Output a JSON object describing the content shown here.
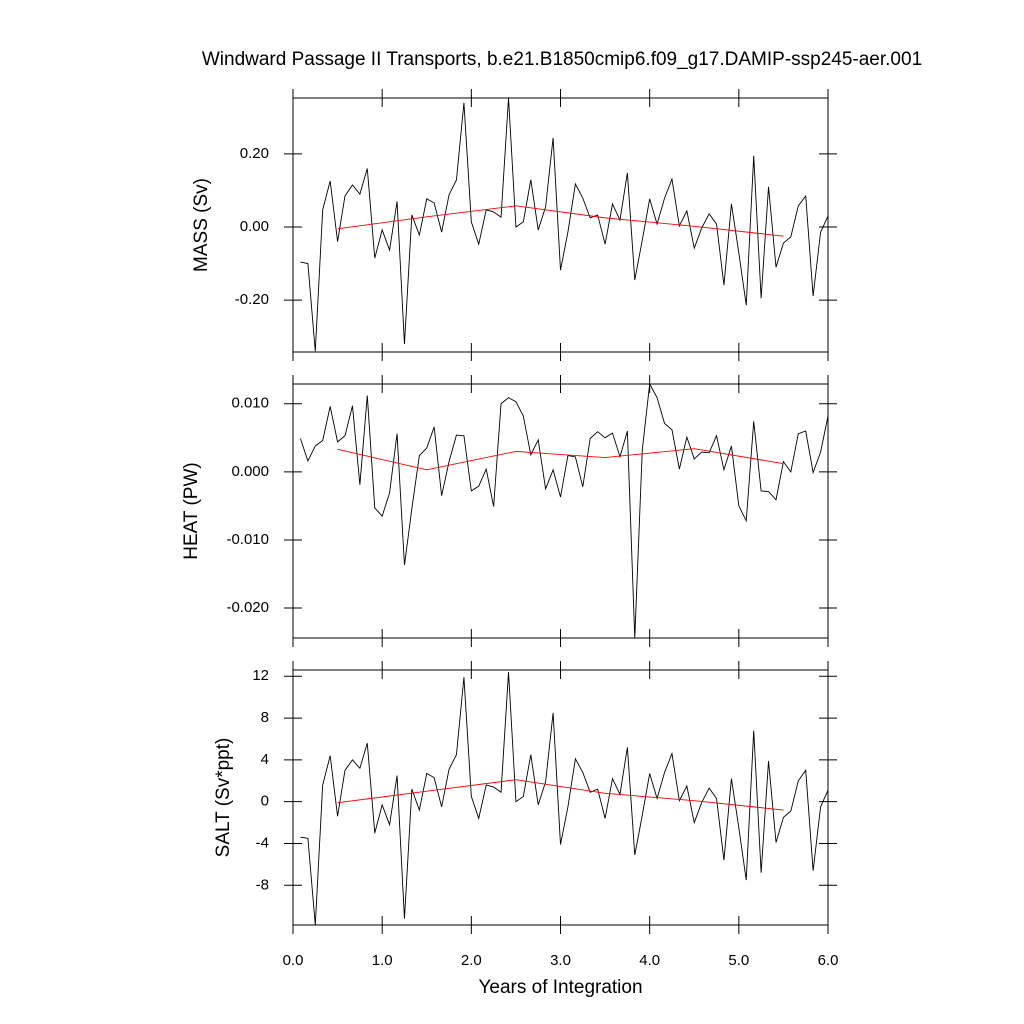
{
  "title": "Windward Passage II Transports, b.e21.B1850cmip6.f09_g17.DAMIP-ssp245-aer.001",
  "chart_data": [
    {
      "type": "line",
      "ylabel": "MASS (Sv)",
      "x": [
        0.083,
        0.167,
        0.25,
        0.333,
        0.417,
        0.5,
        0.583,
        0.667,
        0.75,
        0.833,
        0.917,
        1.0,
        1.083,
        1.167,
        1.25,
        1.333,
        1.417,
        1.5,
        1.583,
        1.667,
        1.75,
        1.833,
        1.917,
        2.0,
        2.083,
        2.167,
        2.25,
        2.333,
        2.417,
        2.5,
        2.583,
        2.667,
        2.75,
        2.833,
        2.917,
        3.0,
        3.083,
        3.167,
        3.25,
        3.333,
        3.417,
        3.5,
        3.583,
        3.667,
        3.75,
        3.833,
        3.917,
        4.0,
        4.083,
        4.167,
        4.25,
        4.333,
        4.417,
        4.5,
        4.583,
        4.667,
        4.75,
        4.833,
        4.917,
        5.0,
        5.083,
        5.167,
        5.25,
        5.333,
        5.417,
        5.5,
        5.583,
        5.667,
        5.75,
        5.833,
        5.917,
        6.0
      ],
      "series": [
        {
          "color": "#000000",
          "values": [
            -0.096,
            -0.1,
            -0.34,
            0.047,
            0.126,
            -0.04,
            0.085,
            0.115,
            0.09,
            0.16,
            -0.085,
            -0.008,
            -0.063,
            0.07,
            -0.32,
            0.033,
            -0.022,
            0.077,
            0.066,
            -0.014,
            0.088,
            0.129,
            0.34,
            0.014,
            -0.047,
            0.047,
            0.041,
            0.027,
            0.353,
            0.0,
            0.014,
            0.129,
            -0.008,
            0.055,
            0.244,
            -0.118,
            -0.014,
            0.118,
            0.079,
            0.025,
            0.033,
            -0.047,
            0.063,
            0.019,
            0.148,
            -0.145,
            -0.036,
            0.077,
            0.008,
            0.079,
            0.131,
            0.003,
            0.044,
            -0.058,
            -0.003,
            0.036,
            0.008,
            -0.159,
            0.063,
            -0.071,
            -0.214,
            0.195,
            -0.195,
            0.11,
            -0.11,
            -0.044,
            -0.027,
            0.058,
            0.085,
            -0.189,
            -0.014,
            0.03
          ]
        },
        {
          "color": "#ff0000",
          "x": [
            0.5,
            1.5,
            2.5,
            3.5,
            4.5,
            5.5
          ],
          "values": [
            -0.005,
            0.028,
            0.058,
            0.025,
            0.002,
            -0.025
          ]
        }
      ],
      "xlim": [
        0,
        6
      ],
      "xticks": [
        {
          "value": 0,
          "label": "0.0"
        },
        {
          "value": 1,
          "label": "1.0"
        },
        {
          "value": 2,
          "label": "2.0"
        },
        {
          "value": 3,
          "label": "3.0"
        },
        {
          "value": 4,
          "label": "4.0"
        },
        {
          "value": 5,
          "label": "5.0"
        },
        {
          "value": 6,
          "label": "6.0"
        }
      ],
      "ylim": [
        -0.342,
        0.353
      ],
      "yticks": [
        {
          "value": -0.2,
          "label": "-0.20"
        },
        {
          "value": 0,
          "label": "0.00"
        },
        {
          "value": 0.2,
          "label": "0.20"
        }
      ]
    },
    {
      "type": "line",
      "ylabel": "HEAT (PW)",
      "x": [
        0.083,
        0.167,
        0.25,
        0.333,
        0.417,
        0.5,
        0.583,
        0.667,
        0.75,
        0.833,
        0.917,
        1.0,
        1.083,
        1.167,
        1.25,
        1.333,
        1.417,
        1.5,
        1.583,
        1.667,
        1.75,
        1.833,
        1.917,
        2.0,
        2.083,
        2.167,
        2.25,
        2.333,
        2.417,
        2.5,
        2.583,
        2.667,
        2.75,
        2.833,
        2.917,
        3.0,
        3.083,
        3.167,
        3.25,
        3.333,
        3.417,
        3.5,
        3.583,
        3.667,
        3.75,
        3.833,
        3.917,
        4.0,
        4.083,
        4.167,
        4.25,
        4.333,
        4.417,
        4.5,
        4.583,
        4.667,
        4.75,
        4.833,
        4.917,
        5.0,
        5.083,
        5.167,
        5.25,
        5.333,
        5.417,
        5.5,
        5.583,
        5.667,
        5.75,
        5.833,
        5.917,
        6.0
      ],
      "series": [
        {
          "color": "#000000",
          "values": [
            0.0049,
            0.0016,
            0.0038,
            0.0046,
            0.0096,
            0.0044,
            0.0053,
            0.0097,
            -0.0019,
            0.0112,
            -0.0053,
            -0.0065,
            -0.0031,
            0.0056,
            -0.0137,
            -0.0054,
            0.0024,
            0.0035,
            0.0066,
            -0.0035,
            0.0015,
            0.0054,
            0.0053,
            -0.0028,
            -0.0021,
            0.0004,
            -0.0051,
            0.01,
            0.0109,
            0.0103,
            0.0082,
            0.0025,
            0.0047,
            -0.0025,
            0.0003,
            -0.0037,
            0.0024,
            0.0022,
            -0.0022,
            0.0049,
            0.0059,
            0.005,
            0.0057,
            0.0022,
            0.006,
            -0.0244,
            0.0032,
            0.0129,
            0.0109,
            0.0071,
            0.0062,
            0.0004,
            0.0051,
            0.0019,
            0.0029,
            0.0028,
            0.0053,
            0.0003,
            0.0038,
            -0.005,
            -0.0072,
            0.0074,
            -0.0028,
            -0.0029,
            -0.0041,
            0.0015,
            0.0,
            0.0056,
            0.006,
            -0.0001,
            0.0029,
            0.0082
          ]
        },
        {
          "color": "#ff0000",
          "x": [
            0.5,
            1.5,
            2.5,
            3.5,
            4.5,
            5.5
          ],
          "values": [
            0.0033,
            0.0003,
            0.003,
            0.0021,
            0.0034,
            0.0012
          ]
        }
      ],
      "xlim": [
        0,
        6
      ],
      "xticks": [
        {
          "value": 0,
          "label": "0.0"
        },
        {
          "value": 1,
          "label": "1.0"
        },
        {
          "value": 2,
          "label": "2.0"
        },
        {
          "value": 3,
          "label": "3.0"
        },
        {
          "value": 4,
          "label": "4.0"
        },
        {
          "value": 5,
          "label": "5.0"
        },
        {
          "value": 6,
          "label": "6.0"
        }
      ],
      "ylim": [
        -0.0244,
        0.0129
      ],
      "yticks": [
        {
          "value": -0.02,
          "label": "-0.020"
        },
        {
          "value": -0.01,
          "label": "-0.010"
        },
        {
          "value": 0,
          "label": "0.000"
        },
        {
          "value": 0.01,
          "label": "0.010"
        }
      ]
    },
    {
      "type": "line",
      "ylabel": "SALT (Sv*ppt)",
      "xlabel": "Years of Integration",
      "x": [
        0.083,
        0.167,
        0.25,
        0.333,
        0.417,
        0.5,
        0.583,
        0.667,
        0.75,
        0.833,
        0.917,
        1.0,
        1.083,
        1.167,
        1.25,
        1.333,
        1.417,
        1.5,
        1.583,
        1.667,
        1.75,
        1.833,
        1.917,
        2.0,
        2.083,
        2.167,
        2.25,
        2.333,
        2.417,
        2.5,
        2.583,
        2.667,
        2.75,
        2.833,
        2.917,
        3.0,
        3.083,
        3.167,
        3.25,
        3.333,
        3.417,
        3.5,
        3.583,
        3.667,
        3.75,
        3.833,
        3.917,
        4.0,
        4.083,
        4.167,
        4.25,
        4.333,
        4.417,
        4.5,
        4.583,
        4.667,
        4.75,
        4.833,
        4.917,
        5.0,
        5.083,
        5.167,
        5.25,
        5.333,
        5.417,
        5.5,
        5.583,
        5.667,
        5.75,
        5.833,
        5.917,
        6.0
      ],
      "series": [
        {
          "color": "#000000",
          "values": [
            -3.4,
            -3.5,
            -11.8,
            1.6,
            4.4,
            -1.4,
            3.0,
            4.0,
            3.2,
            5.6,
            -3.0,
            -0.3,
            -2.2,
            2.5,
            -11.2,
            1.2,
            -0.8,
            2.7,
            2.3,
            -0.5,
            3.1,
            4.5,
            11.9,
            0.5,
            -1.6,
            1.6,
            1.4,
            0.9,
            12.4,
            0.0,
            0.5,
            4.5,
            -0.3,
            1.9,
            8.5,
            -4.1,
            -0.5,
            4.1,
            2.8,
            0.9,
            1.2,
            -1.6,
            2.2,
            0.7,
            5.2,
            -5.1,
            -1.3,
            2.7,
            0.3,
            2.8,
            4.6,
            0.1,
            1.5,
            -2.0,
            -0.1,
            1.3,
            0.3,
            -5.6,
            2.2,
            -2.5,
            -7.5,
            6.8,
            -6.8,
            3.9,
            -3.9,
            -1.5,
            -0.9,
            2.0,
            3.0,
            -6.6,
            -0.5,
            1.1
          ]
        },
        {
          "color": "#ff0000",
          "x": [
            0.5,
            1.5,
            2.5,
            3.5,
            4.5,
            5.5
          ],
          "values": [
            -0.1,
            1.0,
            2.1,
            0.8,
            0.1,
            -0.8
          ]
        }
      ],
      "xlim": [
        0,
        6
      ],
      "xticks": [
        {
          "value": 0,
          "label": "0.0"
        },
        {
          "value": 1,
          "label": "1.0"
        },
        {
          "value": 2,
          "label": "2.0"
        },
        {
          "value": 3,
          "label": "3.0"
        },
        {
          "value": 4,
          "label": "4.0"
        },
        {
          "value": 5,
          "label": "5.0"
        },
        {
          "value": 6,
          "label": "6.0"
        }
      ],
      "ylim": [
        -11.8,
        12.6
      ],
      "yticks": [
        -8,
        -4,
        0,
        4,
        8,
        12
      ]
    }
  ]
}
